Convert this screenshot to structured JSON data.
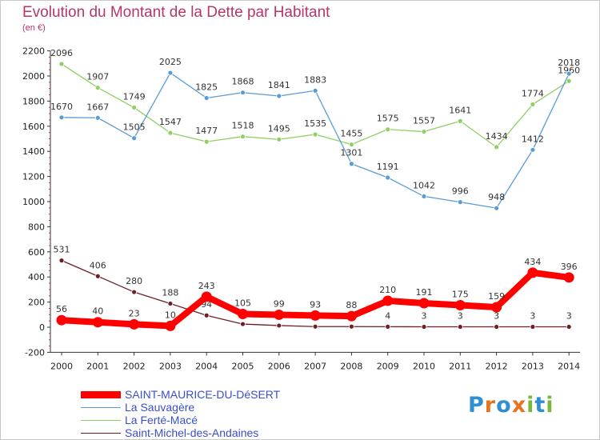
{
  "title": "Evolution du Montant de la Dette par Habitant",
  "unit": "(en €)",
  "logo": {
    "text": "Proxiti",
    "letters": [
      "P",
      "r",
      "o",
      "x",
      "i",
      "t",
      "i"
    ],
    "colors": [
      "#2f8fd0",
      "#e8731e",
      "#2f8fd0",
      "#e8731e",
      "#7ab83c",
      "#2f8fd0",
      "#7ab83c"
    ]
  },
  "chart_data": {
    "type": "line",
    "x": [
      "2000",
      "2001",
      "2002",
      "2003",
      "2004",
      "2005",
      "2006",
      "2007",
      "2008",
      "2009",
      "2010",
      "2011",
      "2012",
      "2013",
      "2014"
    ],
    "yticks": [
      "-200",
      "0",
      "200",
      "400",
      "600",
      "800",
      "1000",
      "1200",
      "1400",
      "1600",
      "1800",
      "2000",
      "2200"
    ],
    "ylim": [
      -200,
      2200
    ],
    "grid": false,
    "legend": "bottom-left",
    "series": [
      {
        "name": "Saint-Michel-des-Andaines",
        "color": "#6e1f24",
        "values": [
          531,
          406,
          280,
          188,
          94,
          25,
          13,
          5,
          5,
          4,
          3,
          3,
          3,
          3,
          3
        ],
        "labels": [
          "531",
          "406",
          "280",
          "188",
          "94",
          "",
          "",
          "",
          "",
          "4",
          "3",
          "3",
          "3",
          "3",
          "3"
        ]
      },
      {
        "name": "La Ferté-Macé",
        "color": "#8ed064",
        "values": [
          2096,
          1907,
          1749,
          1547,
          1477,
          1518,
          1495,
          1535,
          1455,
          1575,
          1557,
          1641,
          1434,
          1774,
          1960
        ],
        "labels": [
          "2096",
          "1907",
          "1749",
          "1547",
          "1477",
          "1518",
          "1495",
          "1535",
          "1455",
          "1575",
          "1557",
          "1641",
          "1434",
          "1774",
          "1960"
        ]
      },
      {
        "name": "La Sauvagère",
        "color": "#5b9bd5",
        "values": [
          1670,
          1667,
          1505,
          2025,
          1825,
          1868,
          1841,
          1883,
          1301,
          1191,
          1042,
          996,
          948,
          1412,
          2018
        ],
        "labels": [
          "1670",
          "1667",
          "1505",
          "2025",
          "1825",
          "1868",
          "1841",
          "1883",
          "1301",
          "1191",
          "1042",
          "996",
          "948",
          "1412",
          "2018"
        ]
      },
      {
        "name": "SAINT-MAURICE-DU-DéSERT",
        "color": "#ff0000",
        "values": [
          56,
          40,
          23,
          10,
          243,
          105,
          99,
          93,
          88,
          210,
          191,
          175,
          159,
          434,
          396
        ],
        "labels": [
          "56",
          "40",
          "23",
          "10",
          "243",
          "105",
          "99",
          "93",
          "88",
          "210",
          "191",
          "175",
          "159",
          "434",
          "396"
        ]
      }
    ]
  },
  "legend_items": [
    "SAINT-MAURICE-DU-DéSERT",
    "La Sauvagère",
    "La Ferté-Macé",
    "Saint-Michel-des-Andaines"
  ]
}
